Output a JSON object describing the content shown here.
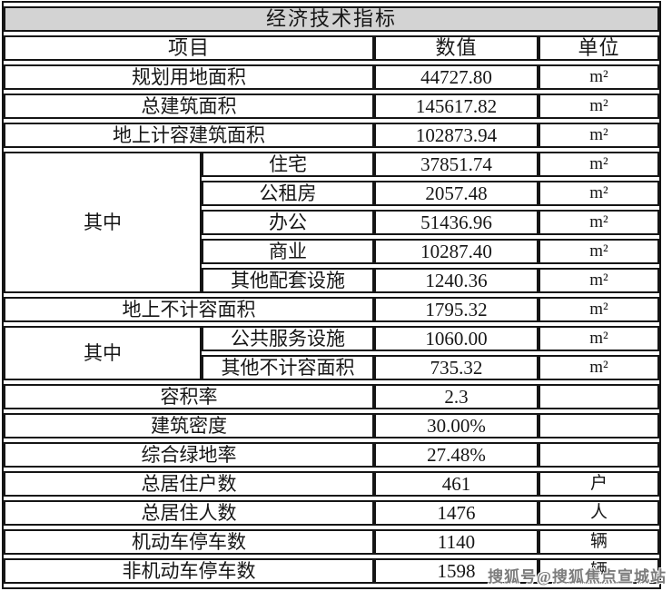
{
  "table": {
    "title": "经济技术指标",
    "columns": {
      "item": "项目",
      "value": "数值",
      "unit": "单位"
    },
    "rows": [
      {
        "item": "规划用地面积",
        "value": "44727.80",
        "unit": "m²"
      },
      {
        "item": "总建筑面积",
        "value": "145617.82",
        "unit": "m²"
      },
      {
        "item": "地上计容建筑面积",
        "value": "102873.94",
        "unit": "m²"
      },
      {
        "group": "其中",
        "item": "住宅",
        "value": "37851.74",
        "unit": "m²"
      },
      {
        "item": "公租房",
        "value": "2057.48",
        "unit": "m²"
      },
      {
        "item": "办公",
        "value": "51436.96",
        "unit": "m²"
      },
      {
        "item": "商业",
        "value": "10287.40",
        "unit": "m²"
      },
      {
        "item": "其他配套设施",
        "value": "1240.36",
        "unit": "m²"
      },
      {
        "item": "地上不计容面积",
        "value": "1795.32",
        "unit": "m²"
      },
      {
        "group": "其中",
        "item": "公共服务设施",
        "value": "1060.00",
        "unit": "m²"
      },
      {
        "item": "其他不计容面积",
        "value": "735.32",
        "unit": "m²"
      },
      {
        "item": "容积率",
        "value": "2.3",
        "unit": ""
      },
      {
        "item": "建筑密度",
        "value": "30.00%",
        "unit": ""
      },
      {
        "item": "综合绿地率",
        "value": "27.48%",
        "unit": ""
      },
      {
        "item": "总居住户数",
        "value": "461",
        "unit": "户"
      },
      {
        "item": "总居住人数",
        "value": "1476",
        "unit": "人"
      },
      {
        "item": "机动车停车数",
        "value": "1140",
        "unit": "辆"
      },
      {
        "item": "非机动车停车数",
        "value": "1598",
        "unit": "辆"
      }
    ]
  },
  "watermark": "搜狐号@搜狐焦点宣城站",
  "colors": {
    "title_background": "#d3d3d3",
    "border": "#151515",
    "watermark_text": "#7c7c7c"
  }
}
